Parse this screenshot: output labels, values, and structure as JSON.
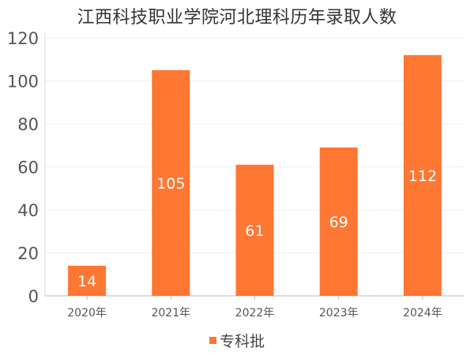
{
  "chart_data": {
    "type": "bar",
    "title": "江西科技职业学院河北理科历年录取人数",
    "categories": [
      "2020年",
      "2021年",
      "2022年",
      "2023年",
      "2024年"
    ],
    "series": [
      {
        "name": "专科批",
        "values": [
          14,
          105,
          61,
          69,
          112
        ],
        "color": "#fe7733"
      }
    ],
    "xlabel": "",
    "ylabel": "",
    "ylim": [
      0,
      120
    ],
    "yticks": [
      0,
      20,
      40,
      60,
      80,
      100,
      120
    ],
    "grid": true,
    "legend_position": "bottom-center",
    "data_labels": true
  }
}
